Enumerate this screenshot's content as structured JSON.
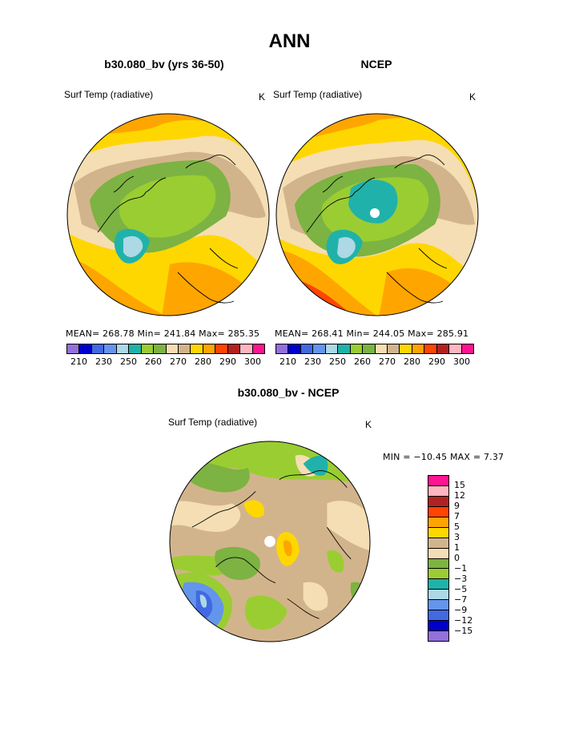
{
  "title": "ANN",
  "panels": [
    {
      "name": "b30.080_bv (yrs 36-50)",
      "variable": "Surf Temp (radiative)",
      "units": "K",
      "stats": {
        "mean": "268.78",
        "min": "241.84",
        "max": "285.35"
      },
      "stats_text": "MEAN= 268.78  Min= 241.84  Max= 285.35"
    },
    {
      "name": "NCEP",
      "variable": "Surf Temp (radiative)",
      "units": "K",
      "stats": {
        "mean": "268.41",
        "min": "244.05",
        "max": "285.91"
      },
      "stats_text": "MEAN= 268.41  Min= 244.05  Max= 285.91"
    },
    {
      "name": "b30.080_bv - NCEP",
      "variable": "Surf Temp (radiative)",
      "units": "K",
      "stats": {
        "min": "-10.45",
        "max": "7.37"
      },
      "stats_text": "MIN = −10.45 MAX =    7.37"
    }
  ],
  "colorbar_abs": {
    "colors": [
      "#9370db",
      "#0000cd",
      "#4169e1",
      "#6495ed",
      "#add8e6",
      "#20b2aa",
      "#9acd32",
      "#7cb342",
      "#f5deb3",
      "#d2b48c",
      "#ffd700",
      "#ffa500",
      "#ff4500",
      "#b22222",
      "#ffb6c1",
      "#ff1493"
    ],
    "labels": [
      "210",
      "230",
      "250",
      "260",
      "270",
      "280",
      "290",
      "300"
    ]
  },
  "colorbar_diff": {
    "colors": [
      "#ff1493",
      "#ffb6c1",
      "#b22222",
      "#ff4500",
      "#ffa500",
      "#ffd700",
      "#d2b48c",
      "#f5deb3",
      "#7cb342",
      "#9acd32",
      "#20b2aa",
      "#add8e6",
      "#6495ed",
      "#4169e1",
      "#0000cd",
      "#9370db"
    ],
    "labels": [
      "15",
      "12",
      "9",
      "7",
      "5",
      "3",
      "1",
      "0",
      "−1",
      "−3",
      "−5",
      "−7",
      "−9",
      "−12",
      "−15"
    ]
  }
}
